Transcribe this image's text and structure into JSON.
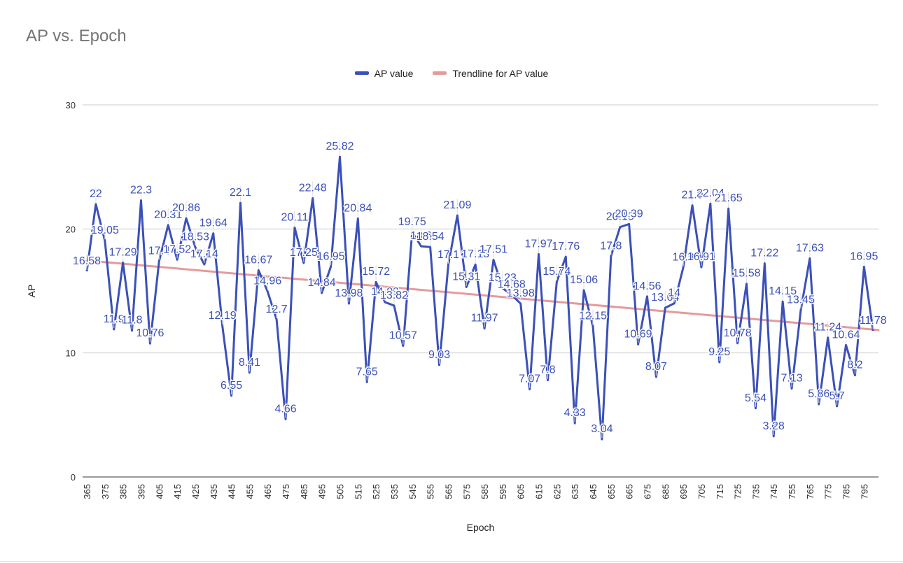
{
  "chart_data": {
    "type": "line",
    "title": "AP vs. Epoch",
    "xlabel": "Epoch",
    "ylabel": "AP",
    "ylim": [
      0,
      30
    ],
    "yticks": [
      0,
      10,
      20,
      30
    ],
    "xlim": [
      365,
      803
    ],
    "xticks": [
      365,
      375,
      385,
      395,
      405,
      415,
      425,
      435,
      445,
      455,
      465,
      475,
      485,
      495,
      505,
      515,
      525,
      535,
      545,
      555,
      565,
      575,
      585,
      595,
      605,
      615,
      625,
      635,
      645,
      655,
      665,
      675,
      685,
      695,
      705,
      715,
      725,
      735,
      745,
      755,
      765,
      775,
      785,
      795
    ],
    "grid": true,
    "legend_position": "top",
    "series": [
      {
        "name": "AP value",
        "color": "#3b50b8",
        "x": [
          365,
          370,
          375,
          380,
          385,
          390,
          395,
          400,
          405,
          410,
          415,
          420,
          425,
          430,
          435,
          440,
          445,
          450,
          455,
          460,
          465,
          470,
          475,
          480,
          485,
          490,
          495,
          500,
          505,
          510,
          515,
          520,
          525,
          530,
          535,
          540,
          545,
          550,
          555,
          560,
          565,
          570,
          575,
          580,
          585,
          590,
          595,
          600,
          605,
          610,
          615,
          620,
          625,
          630,
          635,
          640,
          645,
          650,
          655,
          660,
          665,
          670,
          675,
          680,
          685,
          690,
          695,
          700,
          705,
          710,
          715,
          720,
          725,
          730,
          735,
          740,
          745,
          750,
          755,
          760,
          765,
          770,
          775,
          780,
          785,
          790,
          795,
          800
        ],
        "values": [
          16.58,
          22,
          19.05,
          11.9,
          17.29,
          11.8,
          22.3,
          10.76,
          17.4,
          20.31,
          17.52,
          20.86,
          18.53,
          17.14,
          19.64,
          12.19,
          6.55,
          22.1,
          8.41,
          16.67,
          14.96,
          12.7,
          4.66,
          20.11,
          17.25,
          22.48,
          14.84,
          16.95,
          25.82,
          13.98,
          20.84,
          7.65,
          15.72,
          14.09,
          13.82,
          10.57,
          19.75,
          18.6,
          18.54,
          9.03,
          17.1,
          21.09,
          15.31,
          17.13,
          11.97,
          17.51,
          15.23,
          14.68,
          13.98,
          7.07,
          17.97,
          7.8,
          15.74,
          17.76,
          4.33,
          15.06,
          12.15,
          3.04,
          17.8,
          20.15,
          20.39,
          10.69,
          14.56,
          8.07,
          13.64,
          14,
          16.9,
          21.9,
          16.91,
          22.04,
          9.25,
          21.65,
          10.78,
          15.58,
          5.54,
          17.22,
          3.28,
          14.15,
          7.13,
          13.45,
          17.63,
          5.86,
          11.24,
          5.7,
          10.64,
          8.2,
          16.95,
          11.78
        ],
        "labels": [
          "16.58",
          "22",
          "19.05",
          "11.9",
          "17.29",
          "11.8",
          "22.3",
          "10.76",
          "17.4",
          "20.31",
          "17.52",
          "20.86",
          "18.53",
          "17.14",
          "19.64",
          "12.19",
          "6.55",
          "22.1",
          "8.41",
          "16.67",
          "14.96",
          "12.7",
          "4.66",
          "20.11",
          "17.25",
          "22.48",
          "14.84",
          "16.95",
          "25.82",
          "13.98",
          "20.84",
          "7.65",
          "15.72",
          "14.09",
          "13.82",
          "10.57",
          "19.75",
          "18.6",
          "18.54",
          "9.03",
          "17.1",
          "21.09",
          "15.31",
          "17.13",
          "11.97",
          "17.51",
          "15.23",
          "14.68",
          "13.98",
          "7.07",
          "17.97",
          "7.8",
          "15.74",
          "17.76",
          "4.33",
          "15.06",
          "12.15",
          "3.04",
          "17.8",
          "20.15",
          "20.39",
          "10.69",
          "14.56",
          "8.07",
          "13.64",
          "14",
          "16.9",
          "21.9",
          "16.91",
          "22.04",
          "9.25",
          "21.65",
          "10.78",
          "15.58",
          "5.54",
          "17.22",
          "3.28",
          "14.15",
          "7.13",
          "13.45",
          "17.63",
          "5.86",
          "11.24",
          "5.7",
          "10.64",
          "8.2",
          "16.95",
          "11.78"
        ]
      },
      {
        "name": "Trendline for AP value",
        "color": "#e59b9b",
        "type": "linear-trendline",
        "x": [
          365,
          803
        ],
        "values": [
          17.45,
          11.85
        ]
      }
    ]
  }
}
